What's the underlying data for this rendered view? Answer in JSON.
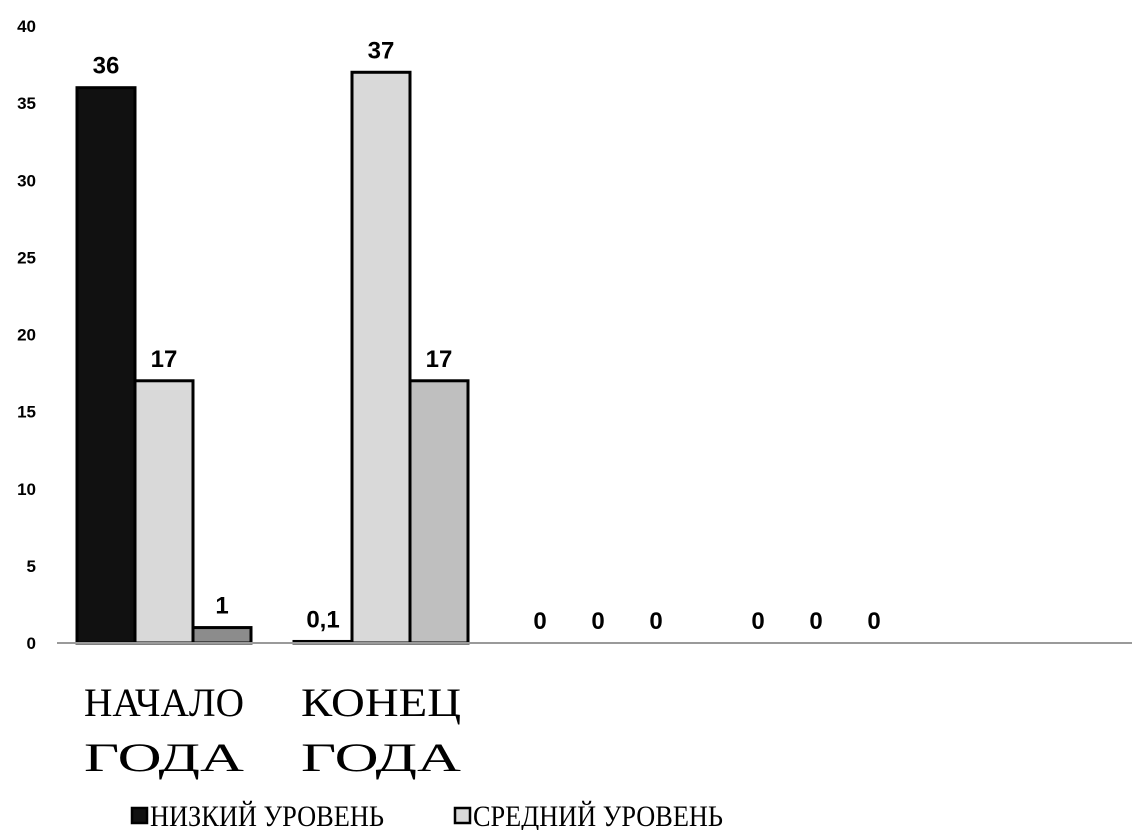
{
  "chart_data": {
    "type": "bar",
    "categories": [
      [
        "НАЧАЛО",
        "ГОДА"
      ],
      [
        "КОНЕЦ",
        "ГОДА"
      ],
      [
        "",
        ""
      ],
      [
        "",
        ""
      ]
    ],
    "series": [
      {
        "name": "НИЗКИЙ УРОВЕНЬ",
        "color": "#111111",
        "values": [
          36,
          0.1,
          0,
          0
        ],
        "labels": [
          "36",
          "0,1",
          "0",
          "0"
        ]
      },
      {
        "name": "СРЕДНИЙ УРОВЕНЬ",
        "color": "#d9d9d9",
        "values": [
          17,
          37,
          0,
          0
        ],
        "labels": [
          "17",
          "37",
          "0",
          "0"
        ]
      },
      {
        "name": "",
        "color": "#8c8c8c",
        "values": [
          1,
          17,
          0,
          0
        ],
        "labels": [
          "1",
          "17",
          "0",
          "0"
        ]
      }
    ],
    "third_series_colors": [
      "#8c8c8c",
      "#bfbfbf",
      "#bfbfbf",
      "#bfbfbf"
    ],
    "yticks": [
      "0",
      "5",
      "10",
      "15",
      "20",
      "25",
      "30",
      "35",
      "40"
    ],
    "ylim": [
      0,
      40
    ],
    "title": "",
    "xlabel": "",
    "ylabel": "",
    "grid": false,
    "legend_position": "bottom"
  }
}
